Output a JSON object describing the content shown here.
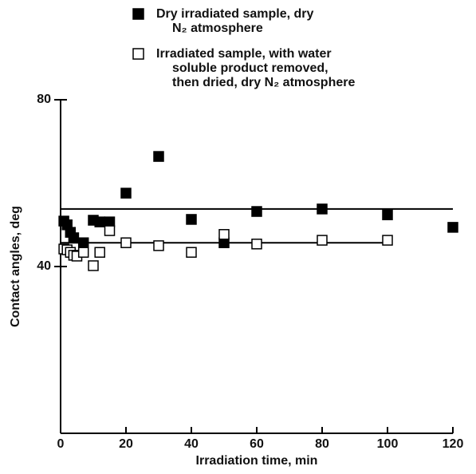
{
  "chart_data": {
    "type": "scatter",
    "xlabel": "Irradiation time, min",
    "ylabel": "Contact angles, deg",
    "xlim": [
      0,
      120
    ],
    "xticks": [
      0,
      20,
      40,
      60,
      80,
      100,
      120
    ],
    "ylim": [
      0,
      80
    ],
    "yticks": [
      40,
      80
    ],
    "series": [
      {
        "name": "Dry irradiated sample, dry\nN₂ atmosphere",
        "color": "#000000",
        "marker": "filled-square",
        "x": [
          1,
          2,
          3,
          4,
          7,
          10,
          12,
          15,
          20,
          30,
          40,
          50,
          60,
          80,
          100,
          120
        ],
        "values": [
          50.9,
          50,
          48.2,
          46.9,
          45.7,
          51.1,
          50.7,
          50.7,
          57.6,
          66.4,
          51.3,
          45.7,
          53.2,
          53.8,
          52.4,
          49.4
        ],
        "fit": {
          "y": 53.8,
          "x": [
            0,
            120
          ]
        }
      },
      {
        "name": "Irradiated sample, with water\nsoluble product removed,\nthen dried, dry N₂ atmosphere",
        "color": "#000000",
        "marker": "open-square",
        "x": [
          1,
          2,
          3,
          4,
          5,
          7,
          10,
          12,
          15,
          20,
          30,
          40,
          50,
          60,
          80,
          100
        ],
        "values": [
          44.2,
          44,
          43.4,
          42.7,
          42.5,
          43.4,
          40.2,
          43.4,
          48.6,
          45.7,
          45,
          43.4,
          47.7,
          45.4,
          46.3,
          46.3
        ],
        "fit": {
          "y": 45.7,
          "x": [
            0,
            100
          ]
        }
      }
    ]
  }
}
